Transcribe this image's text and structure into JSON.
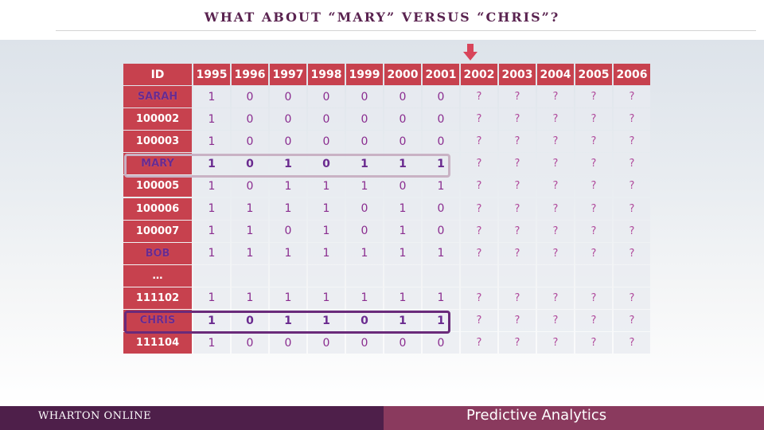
{
  "slide": {
    "title": "WHAT ABOUT “MARY” VERSUS “CHRIS”?"
  },
  "table": {
    "header": [
      "ID",
      "1995",
      "1996",
      "1997",
      "1998",
      "1999",
      "2000",
      "2001",
      "2002",
      "2003",
      "2004",
      "2005",
      "2006"
    ],
    "rows": [
      {
        "id": "SARAH",
        "named": true,
        "values": [
          "1",
          "0",
          "0",
          "0",
          "0",
          "0",
          "0",
          "?",
          "?",
          "?",
          "?",
          "?"
        ]
      },
      {
        "id": "100002",
        "named": false,
        "values": [
          "1",
          "0",
          "0",
          "0",
          "0",
          "0",
          "0",
          "?",
          "?",
          "?",
          "?",
          "?"
        ]
      },
      {
        "id": "100003",
        "named": false,
        "values": [
          "1",
          "0",
          "0",
          "0",
          "0",
          "0",
          "0",
          "?",
          "?",
          "?",
          "?",
          "?"
        ]
      },
      {
        "id": "MARY",
        "named": true,
        "emphasis": true,
        "values": [
          "1",
          "0",
          "1",
          "0",
          "1",
          "1",
          "1",
          "?",
          "?",
          "?",
          "?",
          "?"
        ]
      },
      {
        "id": "100005",
        "named": false,
        "values": [
          "1",
          "0",
          "1",
          "1",
          "1",
          "0",
          "1",
          "?",
          "?",
          "?",
          "?",
          "?"
        ]
      },
      {
        "id": "100006",
        "named": false,
        "values": [
          "1",
          "1",
          "1",
          "1",
          "0",
          "1",
          "0",
          "?",
          "?",
          "?",
          "?",
          "?"
        ]
      },
      {
        "id": "100007",
        "named": false,
        "values": [
          "1",
          "1",
          "0",
          "1",
          "0",
          "1",
          "0",
          "?",
          "?",
          "?",
          "?",
          "?"
        ]
      },
      {
        "id": "BOB",
        "named": true,
        "values": [
          "1",
          "1",
          "1",
          "1",
          "1",
          "1",
          "1",
          "?",
          "?",
          "?",
          "?",
          "?"
        ]
      },
      {
        "id": "…",
        "named": false,
        "values": [
          "",
          "",
          "",
          "",
          "",
          "",
          "",
          "",
          "",
          "",
          "",
          ""
        ]
      },
      {
        "id": "111102",
        "named": false,
        "values": [
          "1",
          "1",
          "1",
          "1",
          "1",
          "1",
          "1",
          "?",
          "?",
          "?",
          "?",
          "?"
        ]
      },
      {
        "id": "CHRIS",
        "named": true,
        "emphasis": true,
        "values": [
          "1",
          "0",
          "1",
          "1",
          "0",
          "1",
          "1",
          "?",
          "?",
          "?",
          "?",
          "?"
        ]
      },
      {
        "id": "111104",
        "named": false,
        "values": [
          "1",
          "0",
          "0",
          "0",
          "0",
          "0",
          "0",
          "?",
          "?",
          "?",
          "?",
          "?"
        ]
      }
    ]
  },
  "colors": {
    "header_bg": "#c7414e",
    "accent_purple": "#6a2a8f",
    "arrow": "#d8455a"
  },
  "footer": {
    "left_text": "WHARTON ONLINE",
    "right_text": "Predictive Analytics"
  }
}
